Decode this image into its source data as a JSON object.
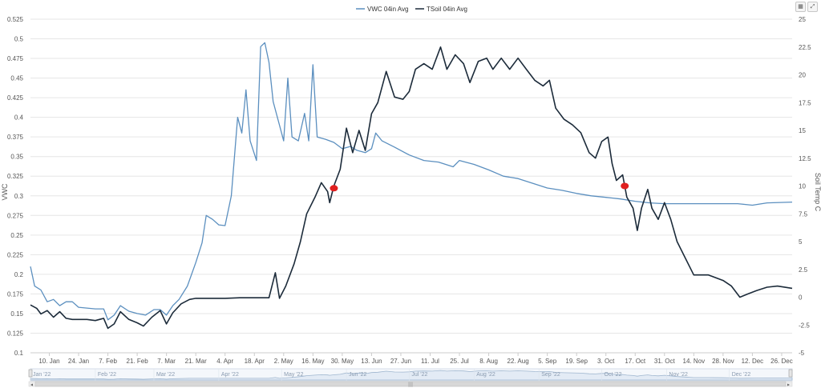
{
  "toolbar": {
    "calendar_icon": "calendar-icon",
    "expand_icon": "expand-icon"
  },
  "chart_data": {
    "type": "line",
    "x_type": "date",
    "xlim": [
      "2022-01-01",
      "2022-12-31"
    ],
    "x_ticks": [
      {
        "date": "2022-01-10",
        "label": "10. Jan"
      },
      {
        "date": "2022-01-24",
        "label": "24. Jan"
      },
      {
        "date": "2022-02-07",
        "label": "7. Feb"
      },
      {
        "date": "2022-02-21",
        "label": "21. Feb"
      },
      {
        "date": "2022-03-07",
        "label": "7. Mar"
      },
      {
        "date": "2022-03-21",
        "label": "21. Mar"
      },
      {
        "date": "2022-04-04",
        "label": "4. Apr"
      },
      {
        "date": "2022-04-18",
        "label": "18. Apr"
      },
      {
        "date": "2022-05-02",
        "label": "2. May"
      },
      {
        "date": "2022-05-16",
        "label": "16. May"
      },
      {
        "date": "2022-05-30",
        "label": "30. May"
      },
      {
        "date": "2022-06-13",
        "label": "13. Jun"
      },
      {
        "date": "2022-06-27",
        "label": "27. Jun"
      },
      {
        "date": "2022-07-11",
        "label": "11. Jul"
      },
      {
        "date": "2022-07-25",
        "label": "25. Jul"
      },
      {
        "date": "2022-08-08",
        "label": "8. Aug"
      },
      {
        "date": "2022-08-22",
        "label": "22. Aug"
      },
      {
        "date": "2022-09-05",
        "label": "5. Sep"
      },
      {
        "date": "2022-09-19",
        "label": "19. Sep"
      },
      {
        "date": "2022-10-03",
        "label": "3. Oct"
      },
      {
        "date": "2022-10-17",
        "label": "17. Oct"
      },
      {
        "date": "2022-10-31",
        "label": "31. Oct"
      },
      {
        "date": "2022-11-14",
        "label": "14. Nov"
      },
      {
        "date": "2022-11-28",
        "label": "28. Nov"
      },
      {
        "date": "2022-12-12",
        "label": "12. Dec"
      },
      {
        "date": "2022-12-26",
        "label": "26. Dec"
      }
    ],
    "y_left": {
      "label": "VWC",
      "lim": [
        0.1,
        0.525
      ],
      "ticks": [
        "0.1",
        "0.125",
        "0.15",
        "0.175",
        "0.2",
        "0.225",
        "0.25",
        "0.275",
        "0.3",
        "0.325",
        "0.35",
        "0.375",
        "0.4",
        "0.425",
        "0.45",
        "0.475",
        "0.5",
        "0.525"
      ]
    },
    "y_right": {
      "label": "Soil Temp C",
      "lim": [
        -5,
        25
      ],
      "ticks": [
        "-5",
        "-2.5",
        "0",
        "2.5",
        "5",
        "7.5",
        "10",
        "12.5",
        "15",
        "17.5",
        "20",
        "22.5",
        "25"
      ]
    },
    "legend": {
      "placement": "top-center"
    },
    "grid": {
      "horizontal": true,
      "vertical": false
    },
    "series": [
      {
        "name": "VWC 04in Avg",
        "axis": "left",
        "color": "#5b8fbf",
        "points": [
          [
            "2022-01-01",
            0.21
          ],
          [
            "2022-01-03",
            0.185
          ],
          [
            "2022-01-06",
            0.18
          ],
          [
            "2022-01-09",
            0.165
          ],
          [
            "2022-01-12",
            0.168
          ],
          [
            "2022-01-15",
            0.16
          ],
          [
            "2022-01-18",
            0.165
          ],
          [
            "2022-01-21",
            0.165
          ],
          [
            "2022-01-24",
            0.158
          ],
          [
            "2022-01-28",
            0.157
          ],
          [
            "2022-02-01",
            0.156
          ],
          [
            "2022-02-05",
            0.156
          ],
          [
            "2022-02-07",
            0.142
          ],
          [
            "2022-02-10",
            0.148
          ],
          [
            "2022-02-13",
            0.16
          ],
          [
            "2022-02-17",
            0.153
          ],
          [
            "2022-02-21",
            0.15
          ],
          [
            "2022-02-25",
            0.148
          ],
          [
            "2022-03-01",
            0.155
          ],
          [
            "2022-03-04",
            0.155
          ],
          [
            "2022-03-07",
            0.148
          ],
          [
            "2022-03-10",
            0.16
          ],
          [
            "2022-03-13",
            0.168
          ],
          [
            "2022-03-17",
            0.185
          ],
          [
            "2022-03-21",
            0.215
          ],
          [
            "2022-03-24",
            0.24
          ],
          [
            "2022-03-26",
            0.275
          ],
          [
            "2022-03-29",
            0.27
          ],
          [
            "2022-04-01",
            0.263
          ],
          [
            "2022-04-04",
            0.262
          ],
          [
            "2022-04-07",
            0.3
          ],
          [
            "2022-04-10",
            0.4
          ],
          [
            "2022-04-12",
            0.38
          ],
          [
            "2022-04-14",
            0.435
          ],
          [
            "2022-04-16",
            0.37
          ],
          [
            "2022-04-19",
            0.345
          ],
          [
            "2022-04-21",
            0.49
          ],
          [
            "2022-04-23",
            0.495
          ],
          [
            "2022-04-25",
            0.47
          ],
          [
            "2022-04-27",
            0.42
          ],
          [
            "2022-04-30",
            0.39
          ],
          [
            "2022-05-02",
            0.37
          ],
          [
            "2022-05-04",
            0.45
          ],
          [
            "2022-05-06",
            0.375
          ],
          [
            "2022-05-09",
            0.37
          ],
          [
            "2022-05-12",
            0.405
          ],
          [
            "2022-05-14",
            0.37
          ],
          [
            "2022-05-16",
            0.467
          ],
          [
            "2022-05-18",
            0.375
          ],
          [
            "2022-05-22",
            0.372
          ],
          [
            "2022-05-26",
            0.368
          ],
          [
            "2022-05-30",
            0.36
          ],
          [
            "2022-06-03",
            0.363
          ],
          [
            "2022-06-06",
            0.358
          ],
          [
            "2022-06-10",
            0.355
          ],
          [
            "2022-06-13",
            0.36
          ],
          [
            "2022-06-15",
            0.38
          ],
          [
            "2022-06-18",
            0.37
          ],
          [
            "2022-06-24",
            0.362
          ],
          [
            "2022-07-01",
            0.352
          ],
          [
            "2022-07-08",
            0.345
          ],
          [
            "2022-07-15",
            0.343
          ],
          [
            "2022-07-22",
            0.337
          ],
          [
            "2022-07-25",
            0.345
          ],
          [
            "2022-08-01",
            0.34
          ],
          [
            "2022-08-08",
            0.333
          ],
          [
            "2022-08-15",
            0.325
          ],
          [
            "2022-08-22",
            0.322
          ],
          [
            "2022-08-29",
            0.316
          ],
          [
            "2022-09-05",
            0.31
          ],
          [
            "2022-09-12",
            0.307
          ],
          [
            "2022-09-19",
            0.303
          ],
          [
            "2022-09-26",
            0.3
          ],
          [
            "2022-10-03",
            0.298
          ],
          [
            "2022-10-10",
            0.296
          ],
          [
            "2022-10-17",
            0.293
          ],
          [
            "2022-10-24",
            0.291
          ],
          [
            "2022-10-31",
            0.29
          ],
          [
            "2022-11-07",
            0.29
          ],
          [
            "2022-11-14",
            0.29
          ],
          [
            "2022-11-21",
            0.29
          ],
          [
            "2022-11-28",
            0.29
          ],
          [
            "2022-12-05",
            0.29
          ],
          [
            "2022-12-12",
            0.288
          ],
          [
            "2022-12-19",
            0.291
          ],
          [
            "2022-12-31",
            0.292
          ]
        ]
      },
      {
        "name": "TSoil 04in Avg",
        "axis": "right",
        "color": "#1c2b3a",
        "points": [
          [
            "2022-01-01",
            -0.7
          ],
          [
            "2022-01-04",
            -1.0
          ],
          [
            "2022-01-06",
            -1.5
          ],
          [
            "2022-01-09",
            -1.2
          ],
          [
            "2022-01-12",
            -1.8
          ],
          [
            "2022-01-15",
            -1.3
          ],
          [
            "2022-01-18",
            -1.9
          ],
          [
            "2022-01-21",
            -2.0
          ],
          [
            "2022-01-24",
            -2.0
          ],
          [
            "2022-01-28",
            -2.0
          ],
          [
            "2022-02-01",
            -2.1
          ],
          [
            "2022-02-05",
            -1.9
          ],
          [
            "2022-02-07",
            -2.8
          ],
          [
            "2022-02-10",
            -2.4
          ],
          [
            "2022-02-13",
            -1.3
          ],
          [
            "2022-02-17",
            -2.0
          ],
          [
            "2022-02-21",
            -2.3
          ],
          [
            "2022-02-24",
            -2.6
          ],
          [
            "2022-02-28",
            -1.8
          ],
          [
            "2022-03-04",
            -1.2
          ],
          [
            "2022-03-07",
            -2.4
          ],
          [
            "2022-03-10",
            -1.4
          ],
          [
            "2022-03-14",
            -0.6
          ],
          [
            "2022-03-18",
            -0.2
          ],
          [
            "2022-03-21",
            -0.1
          ],
          [
            "2022-03-28",
            -0.1
          ],
          [
            "2022-04-04",
            -0.1
          ],
          [
            "2022-04-11",
            -0.05
          ],
          [
            "2022-04-18",
            -0.05
          ],
          [
            "2022-04-25",
            -0.05
          ],
          [
            "2022-04-28",
            2.2
          ],
          [
            "2022-04-30",
            -0.1
          ],
          [
            "2022-05-03",
            1.0
          ],
          [
            "2022-05-07",
            3.0
          ],
          [
            "2022-05-10",
            5.0
          ],
          [
            "2022-05-13",
            7.5
          ],
          [
            "2022-05-17",
            9.0
          ],
          [
            "2022-05-20",
            10.3
          ],
          [
            "2022-05-23",
            9.5
          ],
          [
            "2022-05-24",
            8.5
          ],
          [
            "2022-05-26",
            10.0
          ],
          [
            "2022-05-29",
            11.5
          ],
          [
            "2022-06-01",
            15.2
          ],
          [
            "2022-06-04",
            13.0
          ],
          [
            "2022-06-07",
            15.0
          ],
          [
            "2022-06-10",
            13.2
          ],
          [
            "2022-06-13",
            16.5
          ],
          [
            "2022-06-16",
            17.5
          ],
          [
            "2022-06-20",
            20.3
          ],
          [
            "2022-06-24",
            18.0
          ],
          [
            "2022-06-28",
            17.8
          ],
          [
            "2022-07-01",
            18.5
          ],
          [
            "2022-07-04",
            20.5
          ],
          [
            "2022-07-08",
            21.0
          ],
          [
            "2022-07-12",
            20.5
          ],
          [
            "2022-07-16",
            22.5
          ],
          [
            "2022-07-19",
            20.5
          ],
          [
            "2022-07-23",
            21.8
          ],
          [
            "2022-07-27",
            21.0
          ],
          [
            "2022-07-30",
            19.3
          ],
          [
            "2022-08-03",
            21.2
          ],
          [
            "2022-08-07",
            21.5
          ],
          [
            "2022-08-10",
            20.5
          ],
          [
            "2022-08-14",
            21.5
          ],
          [
            "2022-08-18",
            20.5
          ],
          [
            "2022-08-22",
            21.5
          ],
          [
            "2022-08-26",
            20.5
          ],
          [
            "2022-08-30",
            19.5
          ],
          [
            "2022-09-03",
            19.0
          ],
          [
            "2022-09-06",
            19.5
          ],
          [
            "2022-09-09",
            17.0
          ],
          [
            "2022-09-13",
            16.0
          ],
          [
            "2022-09-17",
            15.5
          ],
          [
            "2022-09-21",
            14.8
          ],
          [
            "2022-09-25",
            13.0
          ],
          [
            "2022-09-28",
            12.5
          ],
          [
            "2022-10-01",
            14.0
          ],
          [
            "2022-10-04",
            14.4
          ],
          [
            "2022-10-06",
            12.0
          ],
          [
            "2022-10-08",
            10.5
          ],
          [
            "2022-10-11",
            11.0
          ],
          [
            "2022-10-13",
            9.0
          ],
          [
            "2022-10-16",
            8.0
          ],
          [
            "2022-10-18",
            6.0
          ],
          [
            "2022-10-20",
            8.0
          ],
          [
            "2022-10-23",
            9.7
          ],
          [
            "2022-10-25",
            8.0
          ],
          [
            "2022-10-28",
            7.0
          ],
          [
            "2022-10-31",
            8.5
          ],
          [
            "2022-11-03",
            7.0
          ],
          [
            "2022-11-06",
            5.0
          ],
          [
            "2022-11-10",
            3.5
          ],
          [
            "2022-11-14",
            2.0
          ],
          [
            "2022-11-21",
            2.0
          ],
          [
            "2022-11-28",
            1.5
          ],
          [
            "2022-12-02",
            1.0
          ],
          [
            "2022-12-06",
            0.0
          ],
          [
            "2022-12-10",
            0.3
          ],
          [
            "2022-12-14",
            0.6
          ],
          [
            "2022-12-19",
            0.9
          ],
          [
            "2022-12-24",
            1.0
          ],
          [
            "2022-12-31",
            0.8
          ]
        ]
      }
    ],
    "annotations": [
      {
        "date": "2022-05-26",
        "value": 9.8,
        "axis": "right",
        "shape": "dot",
        "color": "#e02020"
      },
      {
        "date": "2022-10-12",
        "value": 10.0,
        "axis": "right",
        "shape": "dot",
        "color": "#e02020"
      }
    ],
    "navigator": {
      "ticks": [
        "Jan '22",
        "Feb '22",
        "Mar '22",
        "Apr '22",
        "May '22",
        "Jun '22",
        "Jul '22",
        "Aug '22",
        "Sep '22",
        "Oct '22",
        "Nov '22",
        "Dec '22"
      ]
    }
  }
}
